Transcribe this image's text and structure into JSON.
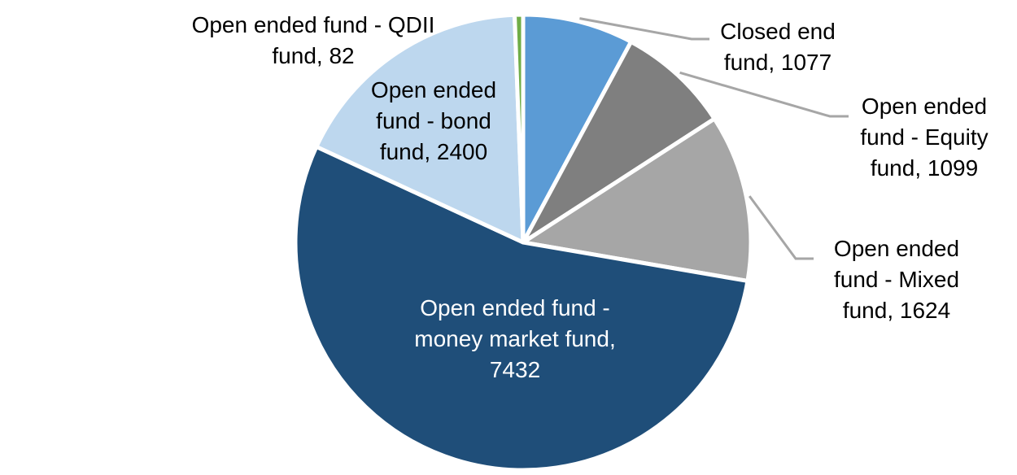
{
  "chart_data": {
    "type": "pie",
    "title": "",
    "total": 13714,
    "start_angle_deg": 0,
    "direction": "clockwise",
    "legend": "none",
    "background_color": "#FFFFFF",
    "leader_line_color": "#A6A6A6",
    "slices": [
      {
        "name": "Closed end fund",
        "value": 1077,
        "color": "#5B9BD5",
        "label_placement": "outside",
        "label_color": "#000000",
        "leader_line": true,
        "label_text_lines": [
          "Closed end",
          "fund, 1077"
        ]
      },
      {
        "name": "Open ended fund - Equity fund",
        "value": 1099,
        "color": "#7F7F7F",
        "label_placement": "outside",
        "label_color": "#000000",
        "leader_line": true,
        "label_text_lines": [
          "Open ended",
          "fund - Equity",
          "fund, 1099"
        ]
      },
      {
        "name": "Open ended fund - Mixed fund",
        "value": 1624,
        "color": "#A6A6A6",
        "label_placement": "outside",
        "label_color": "#000000",
        "leader_line": true,
        "label_text_lines": [
          "Open ended",
          "fund - Mixed",
          "fund, 1624"
        ]
      },
      {
        "name": "Open ended fund - money market fund",
        "value": 7432,
        "color": "#1F4E79",
        "label_placement": "inside",
        "label_color": "#FFFFFF",
        "leader_line": false,
        "label_text_lines": [
          "Open ended fund -",
          "money market fund,",
          "7432"
        ]
      },
      {
        "name": "Open ended fund - bond fund",
        "value": 2400,
        "color": "#BDD7EE",
        "label_placement": "inside",
        "label_color": "#000000",
        "leader_line": false,
        "label_text_lines": [
          "Open ended",
          "fund - bond",
          "fund, 2400"
        ]
      },
      {
        "name": "Open ended fund - QDII fund",
        "value": 82,
        "color": "#70AD47",
        "label_placement": "outside",
        "label_color": "#000000",
        "leader_line": false,
        "label_text_lines": [
          "Open ended fund - QDII",
          "fund, 82"
        ]
      }
    ]
  }
}
